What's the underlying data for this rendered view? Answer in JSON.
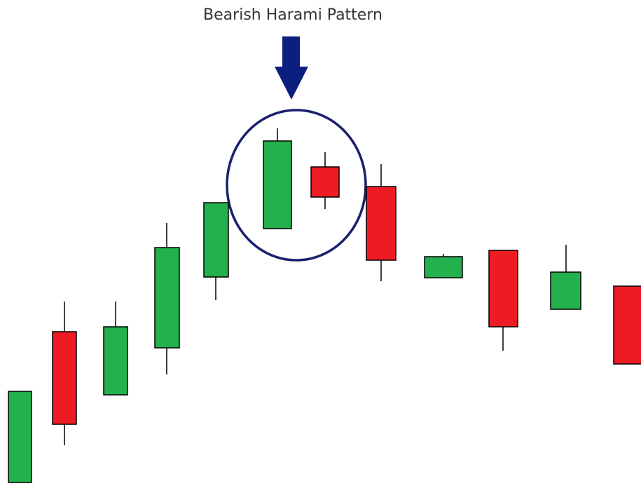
{
  "header": {
    "title": "Bearish Harami Pattern"
  }
}
